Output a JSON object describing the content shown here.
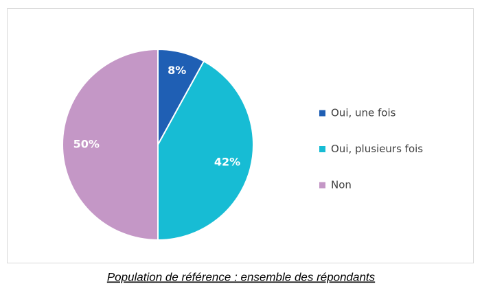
{
  "chart_data": {
    "type": "pie",
    "categories": [
      "Oui, une fois",
      "Oui, plusieurs fois",
      "Non"
    ],
    "values": [
      8,
      42,
      50
    ],
    "value_labels": [
      "8%",
      "42%",
      "50%"
    ],
    "colors": [
      "#1f5fb4",
      "#17bcd4",
      "#c497c6"
    ],
    "legend": "right"
  },
  "caption": "Population de référence : ensemble des répondants"
}
